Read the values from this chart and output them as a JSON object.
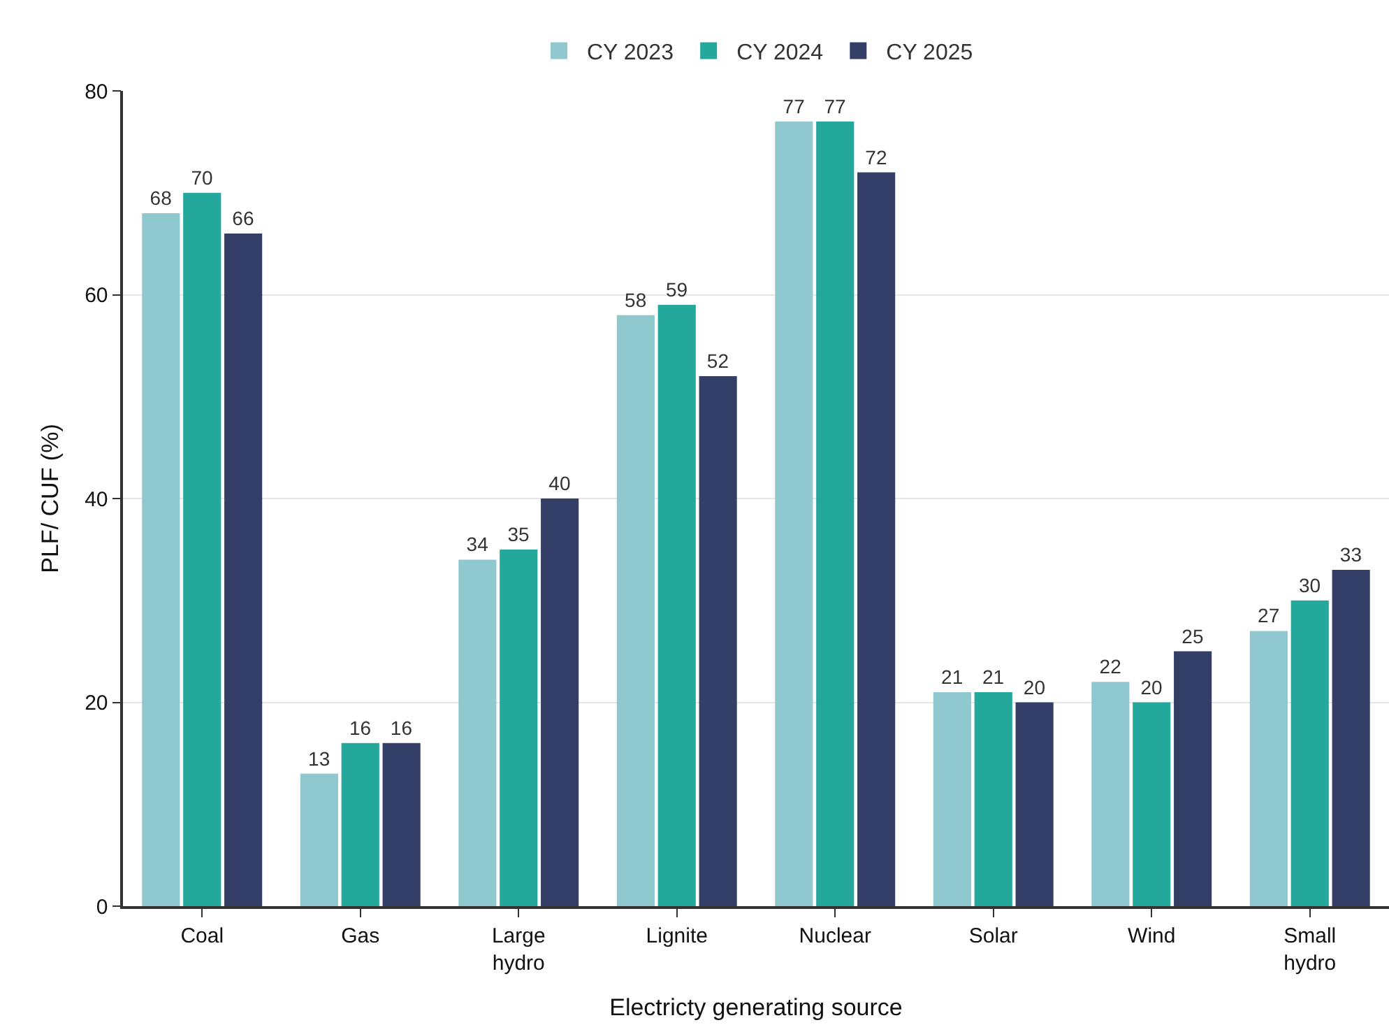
{
  "chart_data": {
    "type": "bar",
    "xlabel": "Electricty generating source",
    "ylabel": "PLF/ CUF (%)",
    "categories": [
      "Coal",
      "Gas",
      "Large hydro",
      "Lignite",
      "Nuclear",
      "Solar",
      "Wind",
      "Small hydro"
    ],
    "series": [
      {
        "name": "CY 2023",
        "color": "#8fc8cf",
        "values": [
          68,
          13,
          34,
          58,
          77,
          21,
          22,
          27
        ]
      },
      {
        "name": "CY 2024",
        "color": "#25a89c",
        "values": [
          70,
          16,
          35,
          59,
          77,
          21,
          20,
          30
        ]
      },
      {
        "name": "CY 2025",
        "color": "#333f67",
        "values": [
          66,
          16,
          40,
          52,
          72,
          20,
          25,
          33
        ]
      }
    ],
    "ylim": [
      0,
      80
    ],
    "yticks": [
      0,
      20,
      40,
      60,
      80
    ],
    "grid": "y",
    "legend": "top",
    "data_labels": true
  }
}
